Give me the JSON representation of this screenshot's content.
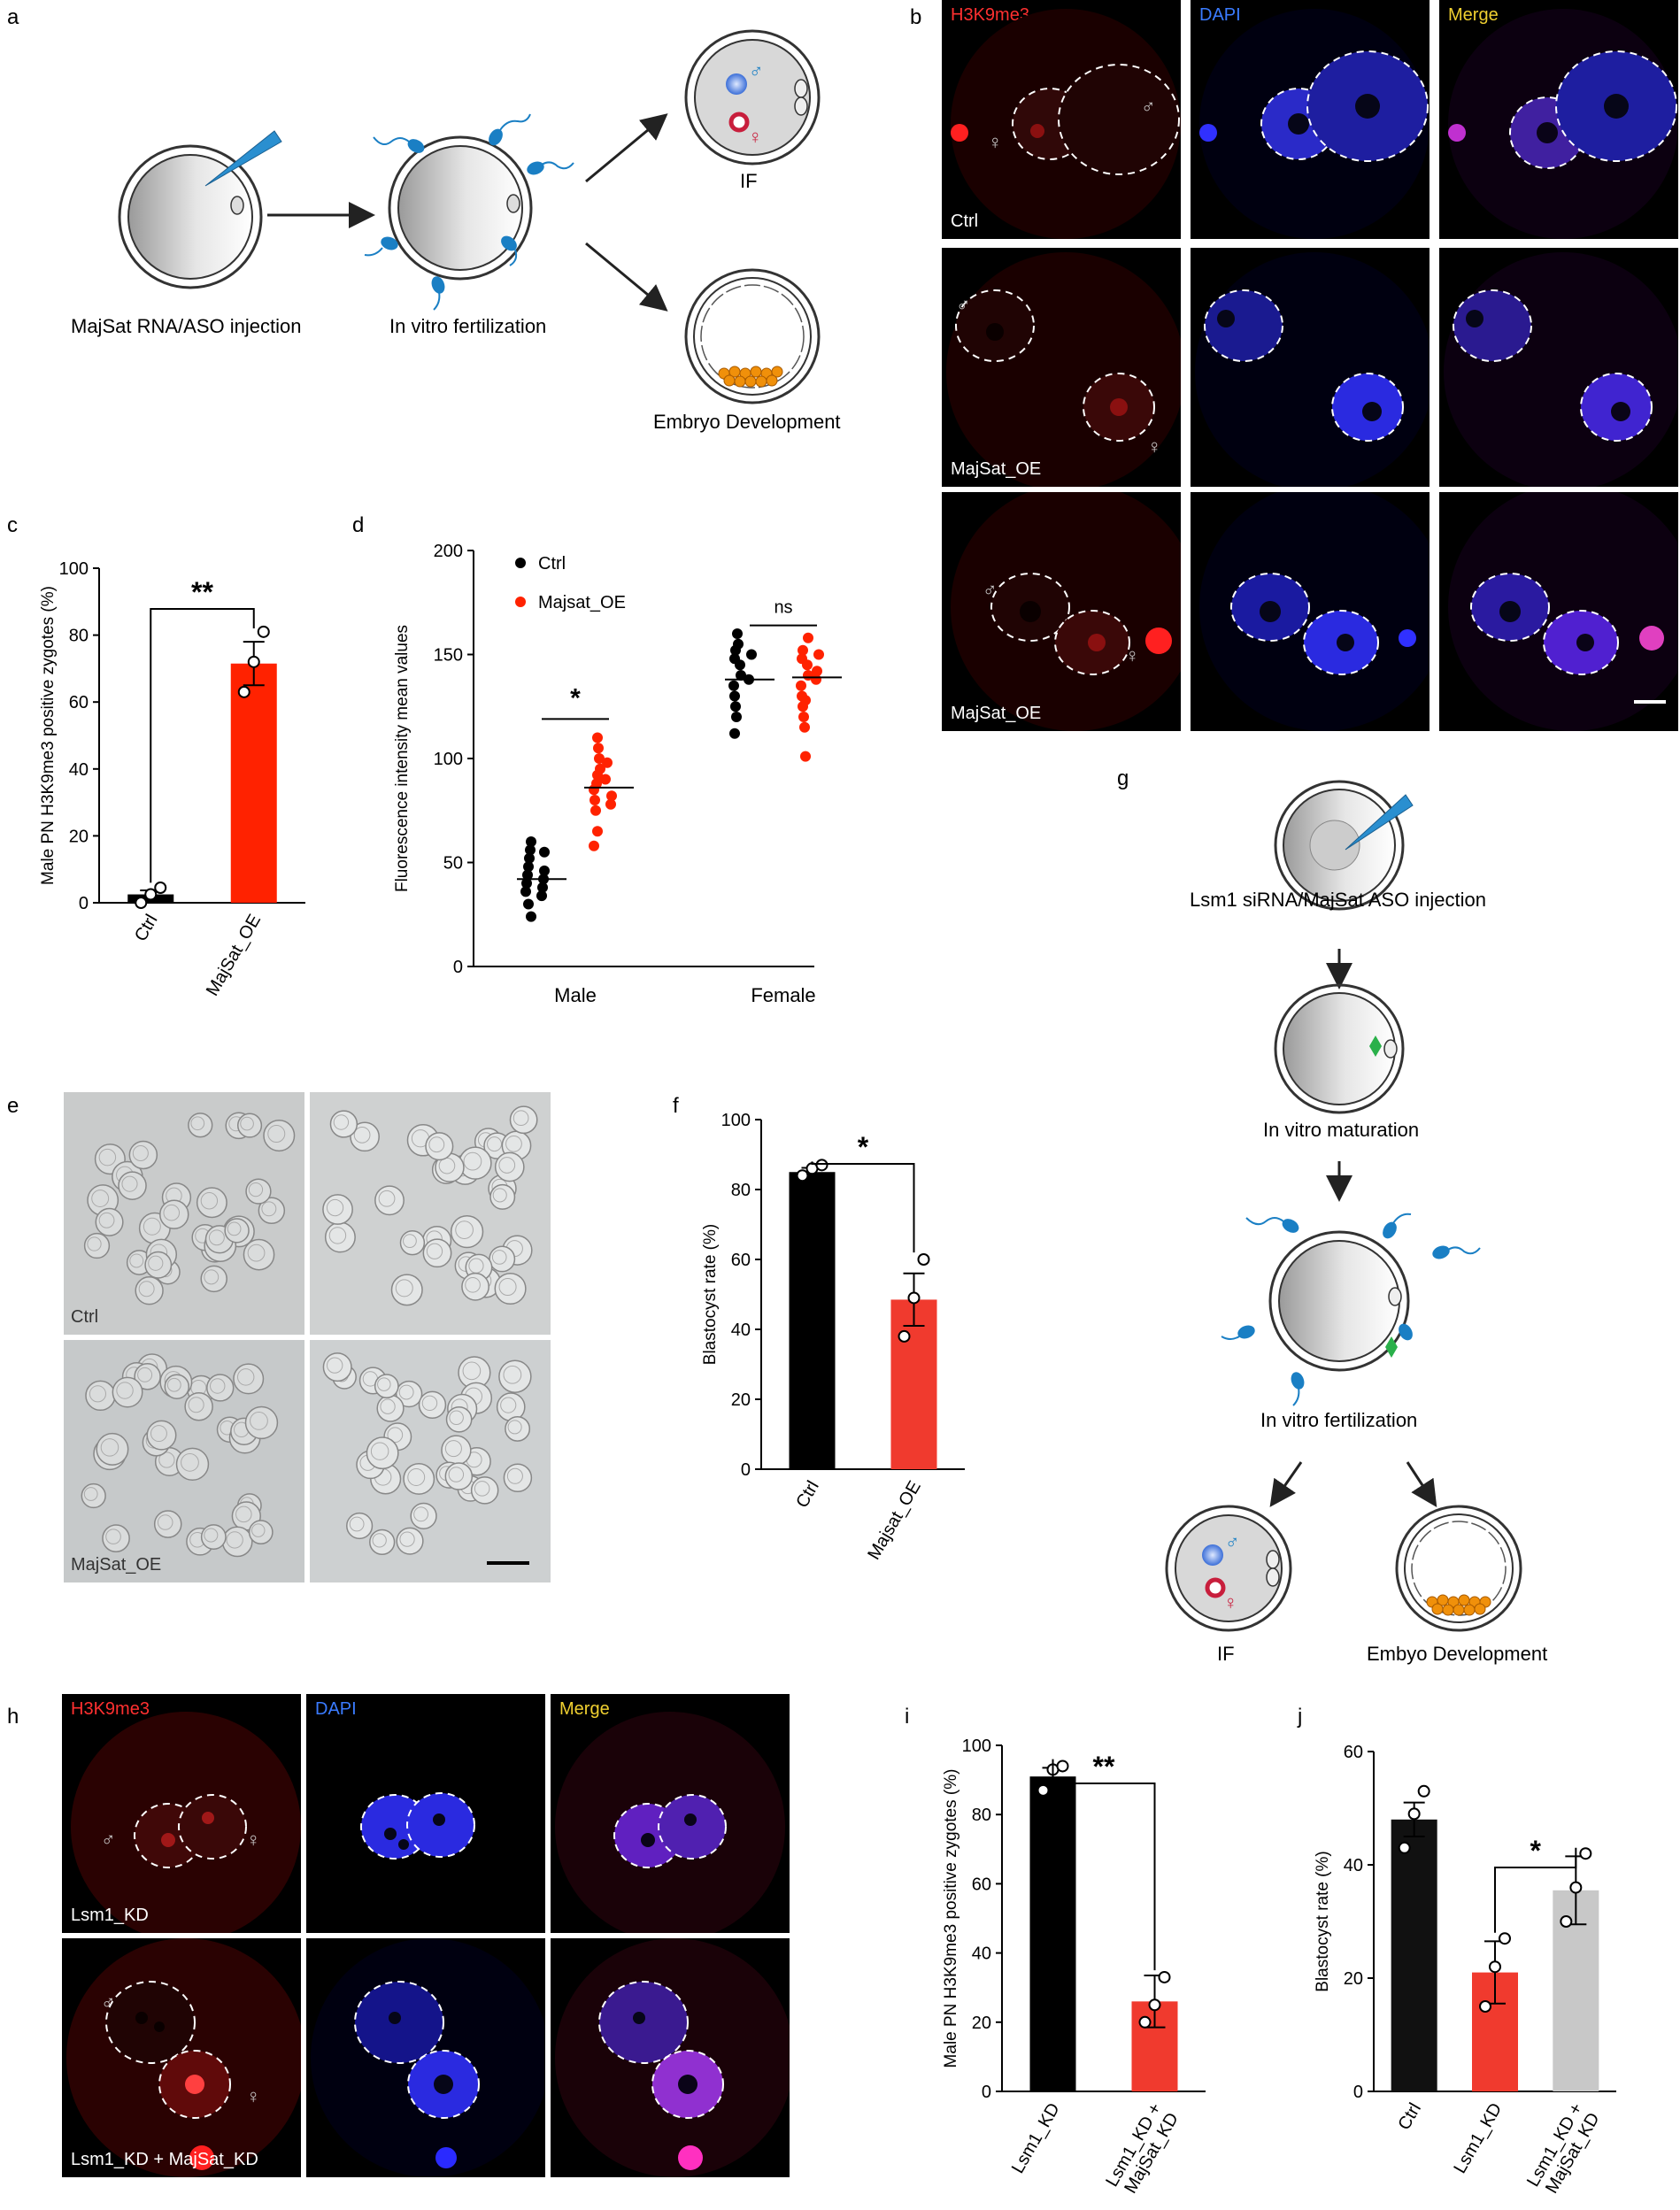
{
  "panel_labels": [
    "a",
    "b",
    "c",
    "d",
    "e",
    "f",
    "g",
    "h",
    "i",
    "j"
  ],
  "panel_a": {
    "steps": [
      "MajSat RNA/ASO injection",
      "In vitro fertilization",
      "IF",
      "Embryo Development"
    ]
  },
  "panel_b": {
    "channels": [
      "H3K9me3",
      "DAPI",
      "Merge"
    ],
    "rows": [
      "Ctrl",
      "MajSat_OE",
      "MajSat_OE"
    ],
    "male_symbol": "♂",
    "female_symbol": "♀"
  },
  "panel_e": {
    "labels": [
      "Ctrl",
      "MajSat_OE"
    ]
  },
  "panel_g": {
    "steps": [
      "Lsm1 siRNA/MajSat ASO injection",
      "In vitro maturation",
      "In vitro fertilization",
      "IF",
      "Embyo Development"
    ]
  },
  "panel_h": {
    "channels": [
      "H3K9me3",
      "DAPI",
      "Merge"
    ],
    "rows": [
      "Lsm1_KD",
      "Lsm1_KD + MajSat_KD"
    ]
  },
  "colors": {
    "red": "#ff2200",
    "black": "#000000",
    "grey": "#c8c8c8",
    "blue": "#1a7fc4",
    "orange": "#f0900a"
  },
  "chart_data": [
    {
      "panel": "c",
      "type": "bar",
      "categories": [
        "Ctrl",
        "MajSat_OE"
      ],
      "values": [
        2.5,
        71.5
      ],
      "errors": [
        1.2,
        6.5
      ],
      "points": [
        [
          0,
          2.5,
          4.5
        ],
        [
          63,
          72,
          81
        ]
      ],
      "ylabel": "Male PN H3K9me3 positive zygotes (%)",
      "ylim": [
        0,
        100
      ],
      "yticks": [
        0,
        20,
        40,
        60,
        80,
        100
      ],
      "significance": "**",
      "bar_colors": [
        "#000000",
        "#ff2200"
      ]
    },
    {
      "panel": "d",
      "type": "scatter",
      "groups": [
        "Male",
        "Female"
      ],
      "series": [
        {
          "name": "Ctrl",
          "male": [
            60,
            56,
            55,
            52,
            48,
            46,
            44,
            42,
            40,
            38,
            36,
            34,
            30,
            24
          ],
          "female": [
            160,
            155,
            152,
            150,
            148,
            145,
            140,
            138,
            135,
            130,
            125,
            120,
            112
          ]
        },
        {
          "name": "Majsat_OE",
          "male": [
            110,
            105,
            100,
            98,
            95,
            92,
            90,
            88,
            85,
            82,
            80,
            78,
            75,
            65,
            58
          ],
          "female": [
            158,
            152,
            150,
            148,
            145,
            142,
            140,
            138,
            135,
            130,
            128,
            125,
            120,
            115,
            101
          ]
        }
      ],
      "means": {
        "Ctrl": [
          42,
          138
        ],
        "Majsat_OE": [
          86,
          139
        ]
      },
      "ylabel": "Fluorescence intensity mean values",
      "ylim": [
        0,
        200
      ],
      "yticks": [
        0,
        50,
        100,
        150,
        200
      ],
      "significance": [
        "*",
        "ns"
      ],
      "legend": "top-left"
    },
    {
      "panel": "f",
      "type": "bar",
      "categories": [
        "Ctrl",
        "Majsat_OE"
      ],
      "values": [
        85,
        48.5
      ],
      "errors": [
        1.2,
        7.5
      ],
      "points": [
        [
          84,
          86,
          87
        ],
        [
          38,
          49,
          60
        ]
      ],
      "ylabel": "Blastocyst rate (%)",
      "ylim": [
        0,
        100
      ],
      "yticks": [
        0,
        20,
        40,
        60,
        80,
        100
      ],
      "significance": "*",
      "bar_colors": [
        "#000000",
        "#f03a2e"
      ]
    },
    {
      "panel": "i",
      "type": "bar",
      "categories": [
        "Lsm1_KD",
        "Lsm1_KD + MajSat_KD"
      ],
      "values": [
        91,
        26
      ],
      "errors": [
        2.5,
        7.5
      ],
      "points": [
        [
          87,
          93,
          94
        ],
        [
          20,
          25,
          33
        ]
      ],
      "ylabel": "Male PN H3K9me3 positive zygotes (%)",
      "ylim": [
        0,
        100
      ],
      "yticks": [
        0,
        20,
        40,
        60,
        80,
        100
      ],
      "significance": "**",
      "bar_colors": [
        "#000000",
        "#f03a2e"
      ]
    },
    {
      "panel": "j",
      "type": "bar",
      "categories": [
        "Ctrl",
        "Lsm1_KD",
        "Lsm1_KD + MajSat_KD"
      ],
      "values": [
        48,
        21,
        35.5
      ],
      "errors": [
        3,
        5.5,
        6
      ],
      "points": [
        [
          43,
          49,
          53
        ],
        [
          15,
          22,
          27
        ],
        [
          30,
          36,
          42
        ]
      ],
      "ylabel": "Blastocyst rate (%)",
      "ylim": [
        0,
        60
      ],
      "yticks": [
        0,
        20,
        40,
        60
      ],
      "significance": "*",
      "bar_colors": [
        "#111111",
        "#f03a2e",
        "#c8c8c8"
      ]
    }
  ]
}
